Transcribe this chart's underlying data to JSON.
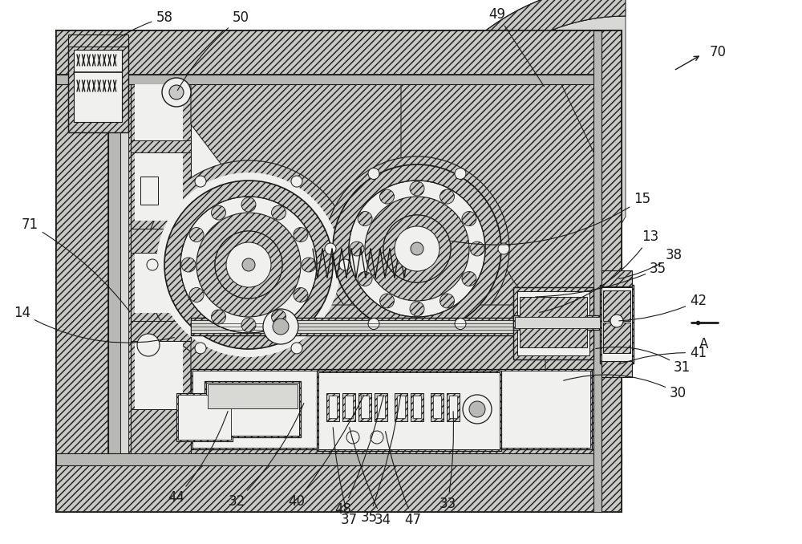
{
  "fig_width": 10.0,
  "fig_height": 6.78,
  "dpi": 100,
  "bg": "#ffffff",
  "lc": "#1a1a1a",
  "hatch_fc": "#c8c8c4",
  "light_gray": "#d8d8d4",
  "mid_gray": "#b8b8b4",
  "white_fill": "#f0f0ee",
  "frame_gray": "#d0d0cc"
}
